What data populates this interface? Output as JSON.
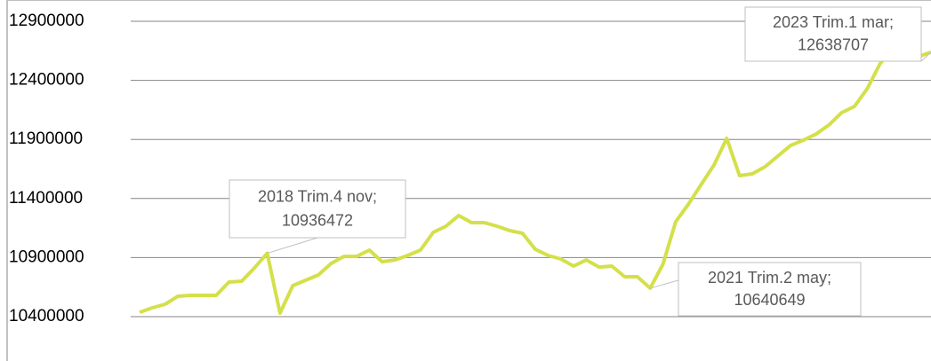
{
  "chart_data": {
    "type": "line",
    "categories": [
      null,
      null,
      null,
      null,
      null,
      null,
      null,
      null,
      null,
      null,
      "2018 Trim.4 nov;",
      null,
      null,
      null,
      null,
      null,
      null,
      null,
      null,
      null,
      null,
      null,
      null,
      null,
      null,
      null,
      null,
      null,
      null,
      null,
      null,
      null,
      null,
      null,
      null,
      null,
      null,
      null,
      null,
      null,
      "2021 Trim.2 may;",
      null,
      null,
      null,
      null,
      null,
      null,
      null,
      null,
      null,
      null,
      null,
      null,
      null,
      null,
      null,
      null,
      null,
      null,
      null,
      null,
      null,
      "2023 Trim.1 mar;"
    ],
    "series": [
      {
        "color": "#d4e04a",
        "values": [
          10437000,
          10475000,
          10505000,
          10573000,
          10580000,
          10580000,
          10580000,
          10693000,
          10700000,
          10813000,
          10936472,
          10430000,
          10663000,
          10708000,
          10753000,
          10850000,
          10910000,
          10910000,
          10963000,
          10865000,
          10880000,
          10918000,
          10963000,
          11113000,
          11166000,
          11256000,
          11196000,
          11196000,
          11166000,
          11128000,
          11106000,
          10970000,
          10918000,
          10888000,
          10828000,
          10880000,
          10820000,
          10828000,
          10738000,
          10738000,
          10640649,
          10843000,
          11203000,
          11353000,
          11519000,
          11684000,
          11909000,
          11594000,
          11609000,
          11669000,
          11759000,
          11849000,
          11894000,
          11946000,
          12022000,
          12127000,
          12179000,
          12329000,
          12540000,
          12667000,
          12742000,
          12600000,
          12638707
        ]
      }
    ],
    "ylim": [
      10400000,
      12900000
    ],
    "yticks": [
      10400000,
      10900000,
      11400000,
      11900000,
      12400000,
      12900000
    ],
    "grid": true
  }
}
